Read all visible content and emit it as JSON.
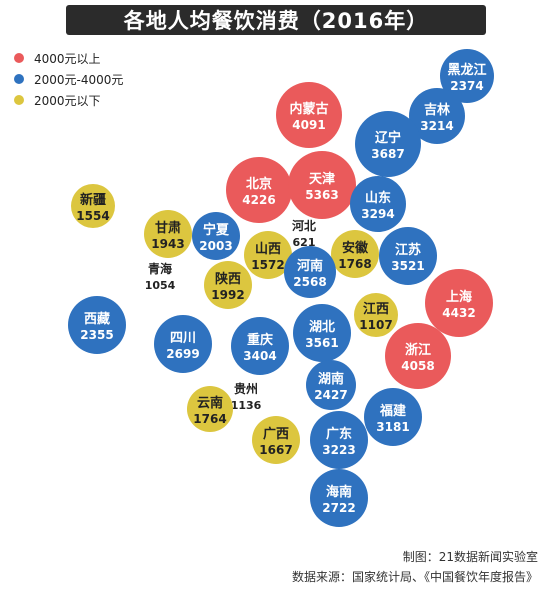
{
  "title": "各地人均餐饮消费（2016年）",
  "legend": [
    {
      "label": "4000元以上",
      "color": "#ea5a5b"
    },
    {
      "label": "2000元-4000元",
      "color": "#2f72bf"
    },
    {
      "label": "2000元以下",
      "color": "#dcc63f"
    }
  ],
  "credit": {
    "maker": "制图：21数据新闻实验室",
    "source": "数据来源：国家统计局、《中国餐饮年度报告》"
  },
  "chart_data": {
    "type": "bubble",
    "title": "各地人均餐饮消费（2016年）",
    "categories": [
      "4000元以上",
      "2000元-4000元",
      "2000元以下"
    ],
    "values": [
      {
        "name": "黑龙江",
        "value": 2374,
        "category": "2000元-4000元"
      },
      {
        "name": "内蒙古",
        "value": 4091,
        "category": "4000元以上"
      },
      {
        "name": "吉林",
        "value": 3214,
        "category": "2000元-4000元"
      },
      {
        "name": "辽宁",
        "value": 3687,
        "category": "2000元-4000元"
      },
      {
        "name": "北京",
        "value": 4226,
        "category": "4000元以上"
      },
      {
        "name": "天津",
        "value": 5363,
        "category": "4000元以上"
      },
      {
        "name": "山东",
        "value": 3294,
        "category": "2000元-4000元"
      },
      {
        "name": "新疆",
        "value": 1554,
        "category": "2000元以下"
      },
      {
        "name": "甘肃",
        "value": 1943,
        "category": "2000元以下"
      },
      {
        "name": "宁夏",
        "value": 2003,
        "category": "2000元-4000元"
      },
      {
        "name": "河北",
        "value": 621,
        "category": "2000元以下"
      },
      {
        "name": "山西",
        "value": 1572,
        "category": "2000元以下"
      },
      {
        "name": "安徽",
        "value": 1768,
        "category": "2000元以下"
      },
      {
        "name": "江苏",
        "value": 3521,
        "category": "2000元-4000元"
      },
      {
        "name": "青海",
        "value": 1054,
        "category": "2000元以下"
      },
      {
        "name": "陕西",
        "value": 1992,
        "category": "2000元以下"
      },
      {
        "name": "河南",
        "value": 2568,
        "category": "2000元-4000元"
      },
      {
        "name": "上海",
        "value": 4432,
        "category": "4000元以上"
      },
      {
        "name": "西藏",
        "value": 2355,
        "category": "2000元-4000元"
      },
      {
        "name": "四川",
        "value": 2699,
        "category": "2000元-4000元"
      },
      {
        "name": "江西",
        "value": 1107,
        "category": "2000元以下"
      },
      {
        "name": "湖北",
        "value": 3561,
        "category": "2000元-4000元"
      },
      {
        "name": "重庆",
        "value": 3404,
        "category": "2000元-4000元"
      },
      {
        "name": "浙江",
        "value": 4058,
        "category": "4000元以上"
      },
      {
        "name": "贵州",
        "value": 1136,
        "category": "2000元以下"
      },
      {
        "name": "云南",
        "value": 1764,
        "category": "2000元以下"
      },
      {
        "name": "湖南",
        "value": 2427,
        "category": "2000元-4000元"
      },
      {
        "name": "福建",
        "value": 3181,
        "category": "2000元-4000元"
      },
      {
        "name": "广西",
        "value": 1667,
        "category": "2000元以下"
      },
      {
        "name": "广东",
        "value": 3223,
        "category": "2000元-4000元"
      },
      {
        "name": "海南",
        "value": 2722,
        "category": "2000元-4000元"
      }
    ]
  }
}
